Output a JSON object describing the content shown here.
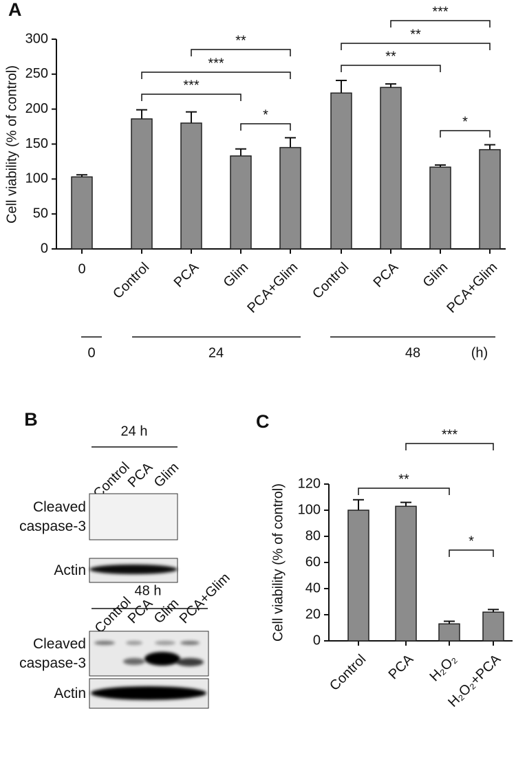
{
  "chart_data": [
    {
      "type": "bar",
      "panel": "A",
      "ylabel": "Cell viability (% of control)",
      "categories": [
        "0",
        "Control",
        "PCA",
        "Glim",
        "PCA+Glim",
        "Control",
        "PCA",
        "Glim",
        "PCA+Glim"
      ],
      "values": [
        103,
        186,
        180,
        133,
        145,
        223,
        231,
        117,
        142
      ],
      "errors": [
        3,
        13,
        16,
        10,
        14,
        18,
        5,
        3,
        7
      ],
      "color": "#8c8c8c",
      "ylim": [
        0,
        300
      ],
      "yticks": [
        0,
        50,
        100,
        150,
        200,
        250,
        300
      ],
      "groups": [
        "0",
        "24",
        "48"
      ],
      "x_unit": "(h)",
      "annotations": [
        "**",
        "***",
        "***",
        "*",
        "***",
        "**",
        "**",
        "*"
      ]
    },
    {
      "type": "bar",
      "panel": "C",
      "ylabel": "Cell viability (% of control)",
      "categories": [
        "Control",
        "PCA",
        "H₂O₂",
        "H₂O₂+PCA"
      ],
      "values": [
        100,
        103,
        13,
        22
      ],
      "errors": [
        8,
        3,
        2,
        2
      ],
      "color": "#8c8c8c",
      "ylim": [
        0,
        120
      ],
      "yticks": [
        0,
        20,
        40,
        60,
        80,
        100,
        120
      ],
      "annotations": [
        "**",
        "***",
        "*"
      ]
    }
  ],
  "blot": {
    "panel": "B",
    "blocks": [
      {
        "time": "24 h",
        "lanes": [
          "Control",
          "PCA",
          "Glim"
        ],
        "rows": [
          "Cleaved caspase-3",
          "Actin"
        ]
      },
      {
        "time": "48 h",
        "lanes": [
          "Control",
          "PCA",
          "Glim",
          "PCA+Glim"
        ],
        "rows": [
          "Cleaved caspase-3",
          "Actin"
        ]
      }
    ]
  }
}
